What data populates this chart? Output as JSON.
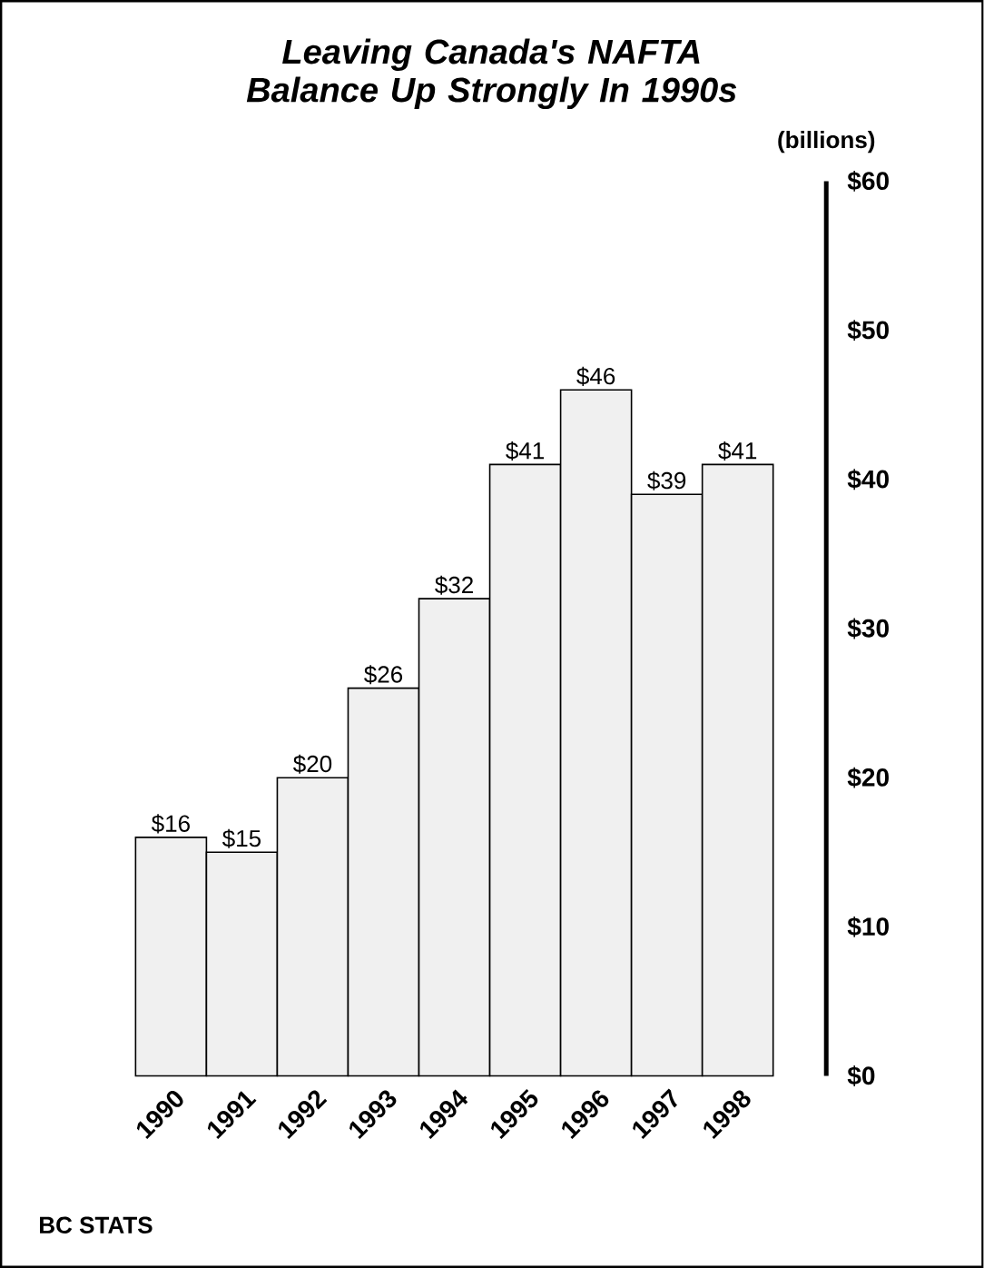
{
  "chart_data": {
    "type": "bar",
    "title": "Leaving Canada's NAFTA  Balance Up Strongly In 1990s",
    "ylabel": "(billions)",
    "categories": [
      "1990",
      "1991",
      "1992",
      "1993",
      "1994",
      "1995",
      "1996",
      "1997",
      "1998"
    ],
    "values": [
      16,
      15,
      20,
      26,
      32,
      41,
      46,
      39,
      41
    ],
    "value_labels": [
      "$16",
      "$15",
      "$20",
      "$26",
      "$32",
      "$41",
      "$46",
      "$39",
      "$41"
    ],
    "color": "#f0f0f0",
    "ylim": [
      0,
      60
    ],
    "yticks": [
      {
        "value": 0,
        "label": "$0"
      },
      {
        "value": 10,
        "label": "$10"
      },
      {
        "value": 20,
        "label": "$20"
      },
      {
        "value": 30,
        "label": "$30"
      },
      {
        "value": 40,
        "label": "$40"
      },
      {
        "value": 50,
        "label": "$50"
      },
      {
        "value": 60,
        "label": "$60"
      }
    ],
    "annotations": [
      "BC STATS"
    ]
  }
}
